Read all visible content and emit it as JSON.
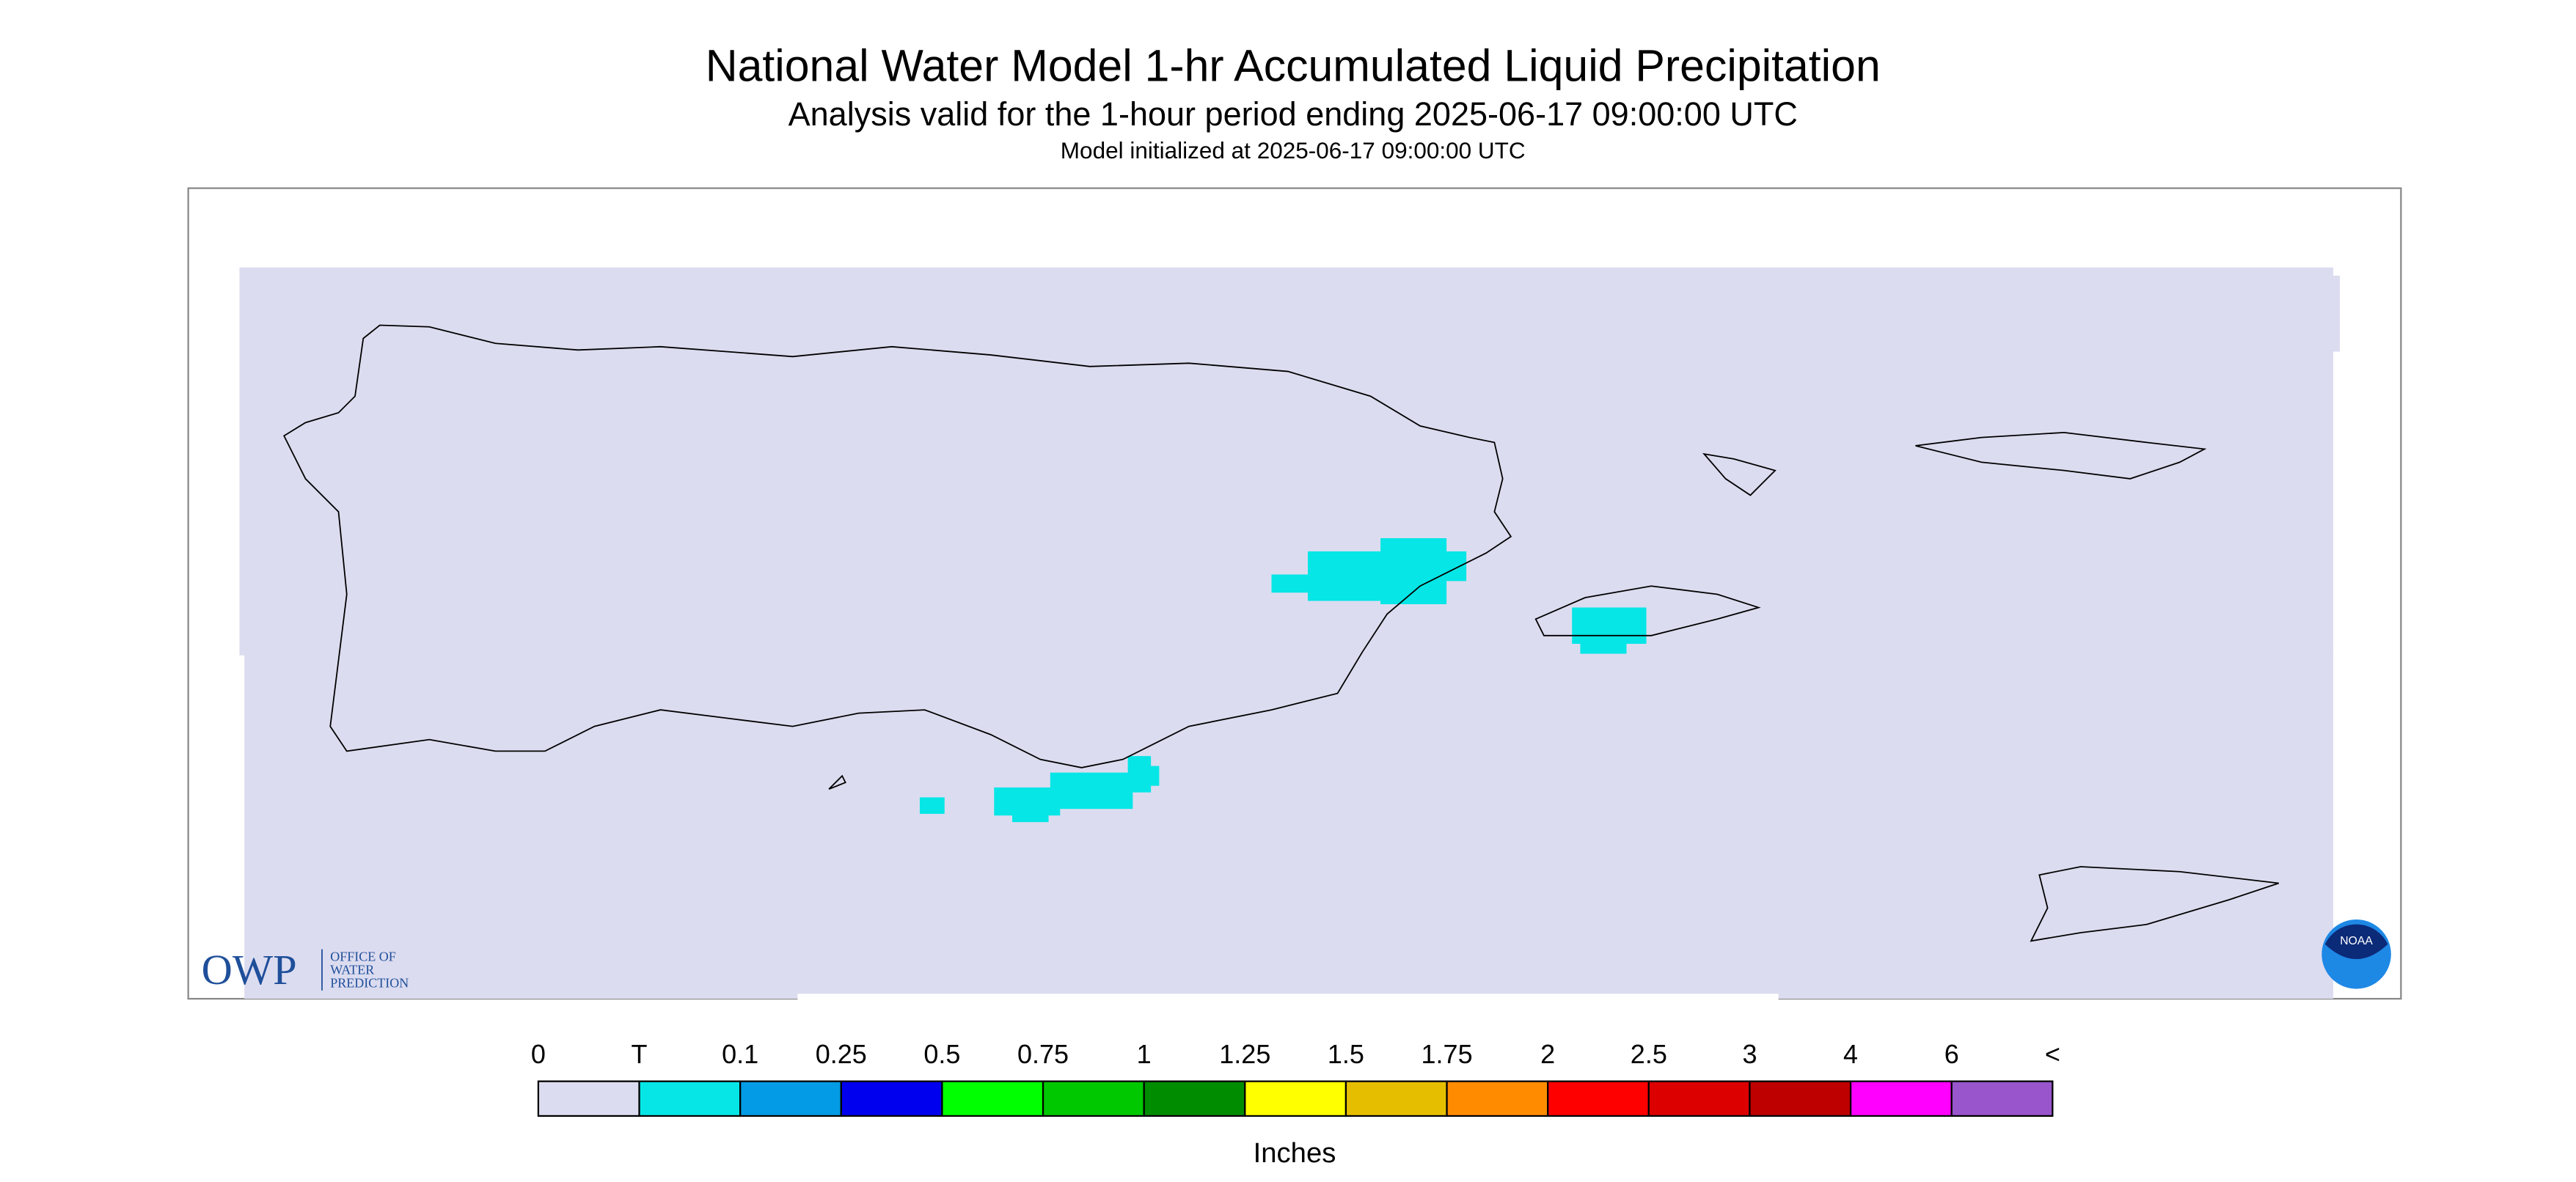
{
  "header": {
    "title": "National Water Model 1-hr Accumulated Liquid Precipitation",
    "subtitle": "Analysis valid for the 1-hour period ending 2025-06-17 09:00:00 UTC",
    "init": "Model initialized at 2025-06-17 09:00:00 UTC"
  },
  "logos": {
    "owp": "OWP",
    "owp_lines": [
      "OFFICE OF",
      "WATER",
      "PREDICTION"
    ],
    "noaa": "NOAA"
  },
  "legend": {
    "labels": [
      "0",
      "T",
      "0.1",
      "0.25",
      "0.5",
      "0.75",
      "1",
      "1.25",
      "1.5",
      "1.75",
      "2",
      "2.5",
      "3",
      "4",
      "6",
      "<"
    ],
    "colors": [
      "#dcdcf0",
      "#06e6e6",
      "#039be5",
      "#0000ee",
      "#00ff00",
      "#00c800",
      "#008c00",
      "#ffff00",
      "#e6be00",
      "#ff8c00",
      "#ff0000",
      "#dc0000",
      "#be0000",
      "#ff00ff",
      "#9955cc"
    ],
    "units": "Inches"
  }
}
